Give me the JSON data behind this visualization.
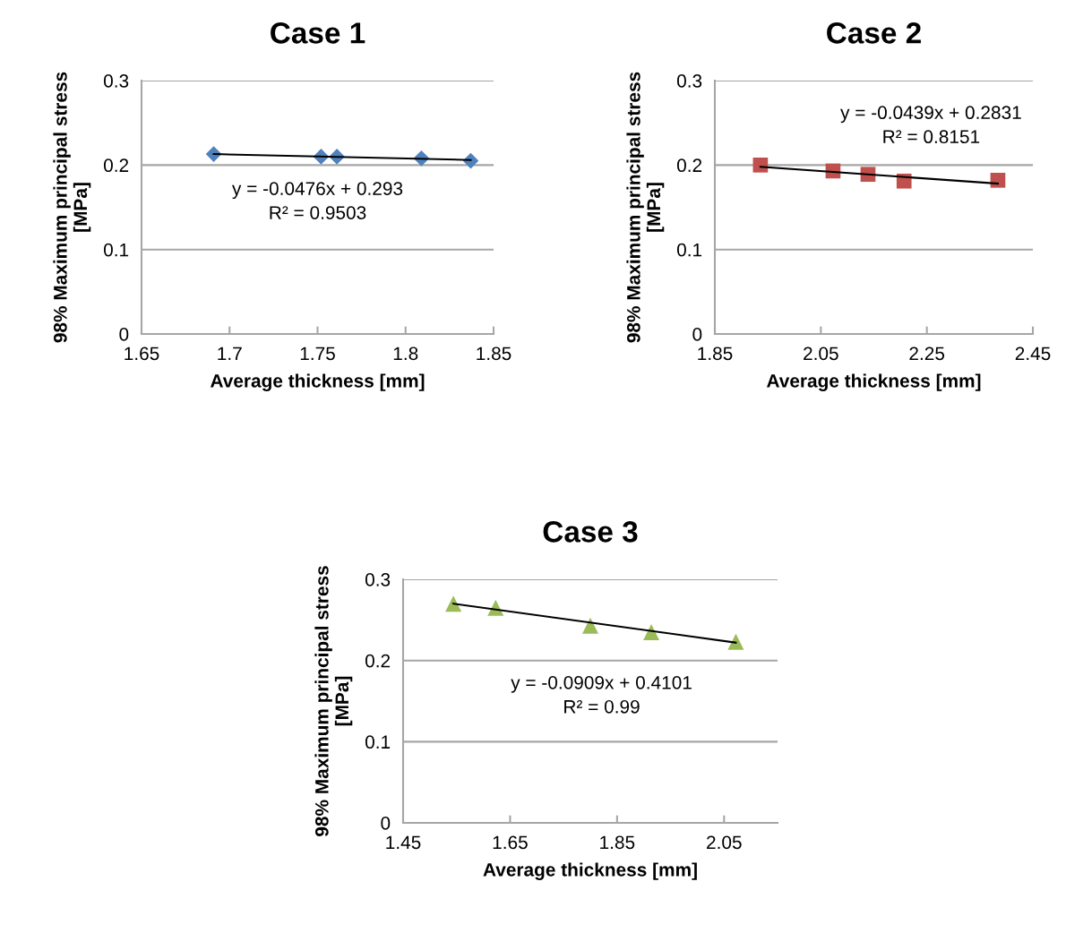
{
  "chart_data": [
    {
      "type": "scatter",
      "title": "Case 1",
      "xlabel": "Average thickness [mm]",
      "ylabel": "98% Maximum principal stress\n[MPa]",
      "xlim": [
        1.65,
        1.85
      ],
      "xticks": [
        1.65,
        1.7,
        1.75,
        1.8,
        1.85
      ],
      "ylim": [
        0,
        0.3
      ],
      "yticks": [
        0,
        0.1,
        0.2,
        0.3
      ],
      "grid": "y",
      "annotations": [
        "y = -0.0476x + 0.293\nR² = 0.9503"
      ],
      "series": [
        {
          "color": "#4f81bd",
          "marker": "diamond",
          "x": [
            1.691,
            1.752,
            1.761,
            1.809,
            1.837
          ],
          "values": [
            0.213,
            0.21,
            0.21,
            0.208,
            0.205
          ]
        },
        {
          "type": "line",
          "color": "#000000",
          "marker": "none",
          "line_style": "solid",
          "x": [
            1.691,
            1.837
          ],
          "values": [
            0.213,
            0.206
          ]
        }
      ]
    },
    {
      "type": "scatter",
      "title": "Case 2",
      "xlabel": "Average thickness [mm]",
      "ylabel": "98% Maximum principal stress\n[MPa]",
      "xlim": [
        1.85,
        2.45
      ],
      "xticks": [
        1.85,
        2.05,
        2.25,
        2.45
      ],
      "ylim": [
        0,
        0.3
      ],
      "yticks": [
        0,
        0.1,
        0.2,
        0.3
      ],
      "grid": "y",
      "annotations": [
        "y = -0.0439x + 0.2831\nR² = 0.8151"
      ],
      "series": [
        {
          "color": "#c0504d",
          "marker": "square",
          "x": [
            1.936,
            2.073,
            2.139,
            2.207,
            2.384
          ],
          "values": [
            0.2,
            0.193,
            0.189,
            0.181,
            0.182
          ]
        },
        {
          "type": "line",
          "color": "#000000",
          "marker": "none",
          "line_style": "solid",
          "x": [
            1.936,
            2.384
          ],
          "values": [
            0.198,
            0.178
          ]
        }
      ]
    },
    {
      "type": "scatter",
      "title": "Case 3",
      "xlabel": "Average thickness [mm]",
      "ylabel": "98% Maximum principal stress\n[MPa]",
      "xlim": [
        1.45,
        2.15
      ],
      "xticks": [
        1.45,
        1.65,
        1.85,
        2.05
      ],
      "ylim": [
        0,
        0.3
      ],
      "yticks": [
        0,
        0.1,
        0.2,
        0.3
      ],
      "grid": "y",
      "annotations": [
        "y = -0.0909x + 0.4101\nR² = 0.99"
      ],
      "series": [
        {
          "color": "#9bbb59",
          "marker": "triangle",
          "x": [
            1.544,
            1.623,
            1.8,
            1.914,
            2.072
          ],
          "values": [
            0.27,
            0.265,
            0.243,
            0.235,
            0.223
          ]
        },
        {
          "type": "line",
          "color": "#000000",
          "marker": "none",
          "line_style": "solid",
          "x": [
            1.544,
            2.072
          ],
          "values": [
            0.27,
            0.222
          ]
        }
      ]
    }
  ]
}
